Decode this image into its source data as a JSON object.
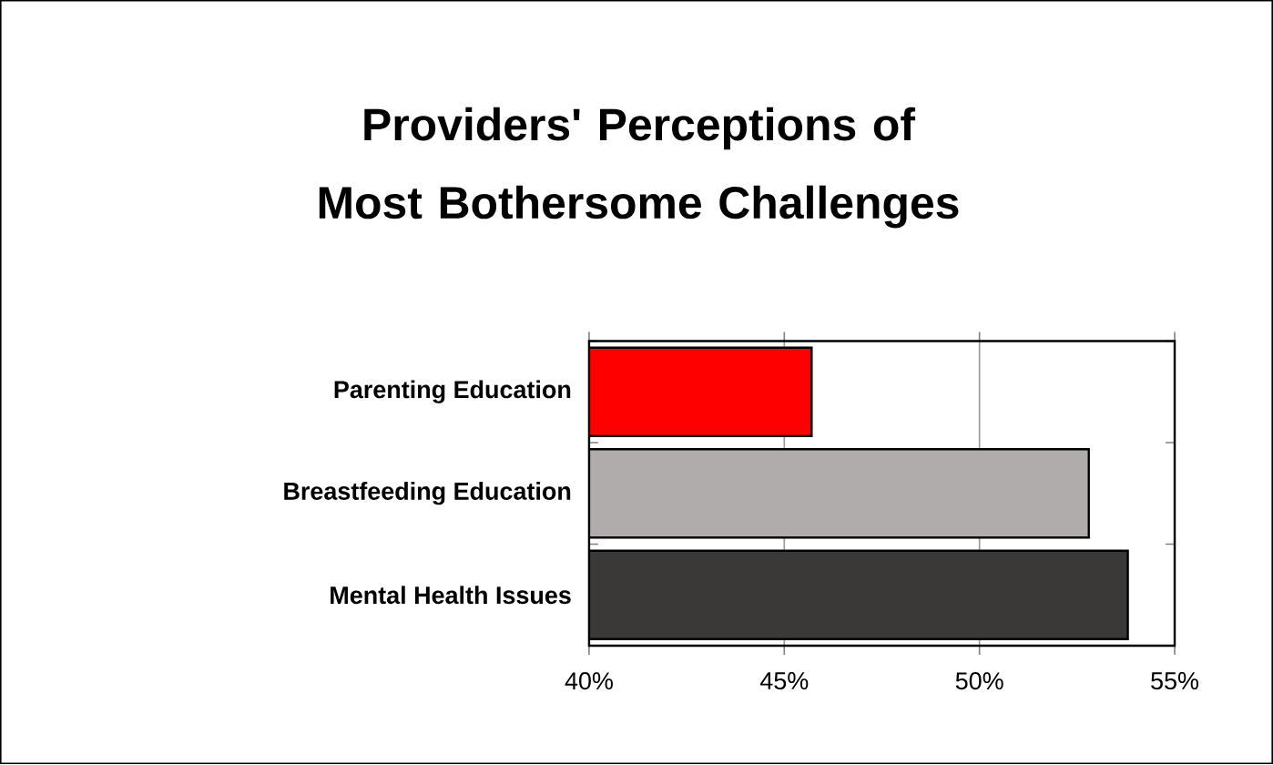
{
  "chart_data": {
    "type": "bar",
    "orientation": "horizontal",
    "title": "Providers' Perceptions of Most Bothersome Challenges",
    "categories": [
      "Parenting Education",
      "Breastfeeding Education",
      "Mental Health Issues"
    ],
    "values": [
      45.7,
      52.8,
      53.8
    ],
    "colors": [
      "#ff0000",
      "#b0acab",
      "#3a3938"
    ],
    "xlim": [
      40,
      55
    ],
    "xticks": [
      {
        "value": 40,
        "label": "40%"
      },
      {
        "value": 45,
        "label": "45%"
      },
      {
        "value": 50,
        "label": "50%"
      },
      {
        "value": 55,
        "label": "55%"
      }
    ],
    "grid": "x"
  }
}
